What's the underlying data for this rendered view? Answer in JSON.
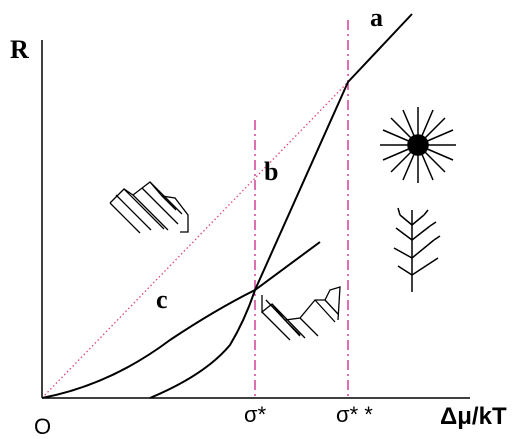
{
  "axes": {
    "y_label": "R",
    "x_label": "Δμ/kT",
    "origin": "O"
  },
  "markers": [
    "σ*",
    "σ* *"
  ],
  "curves": [
    "a",
    "b",
    "c"
  ]
}
